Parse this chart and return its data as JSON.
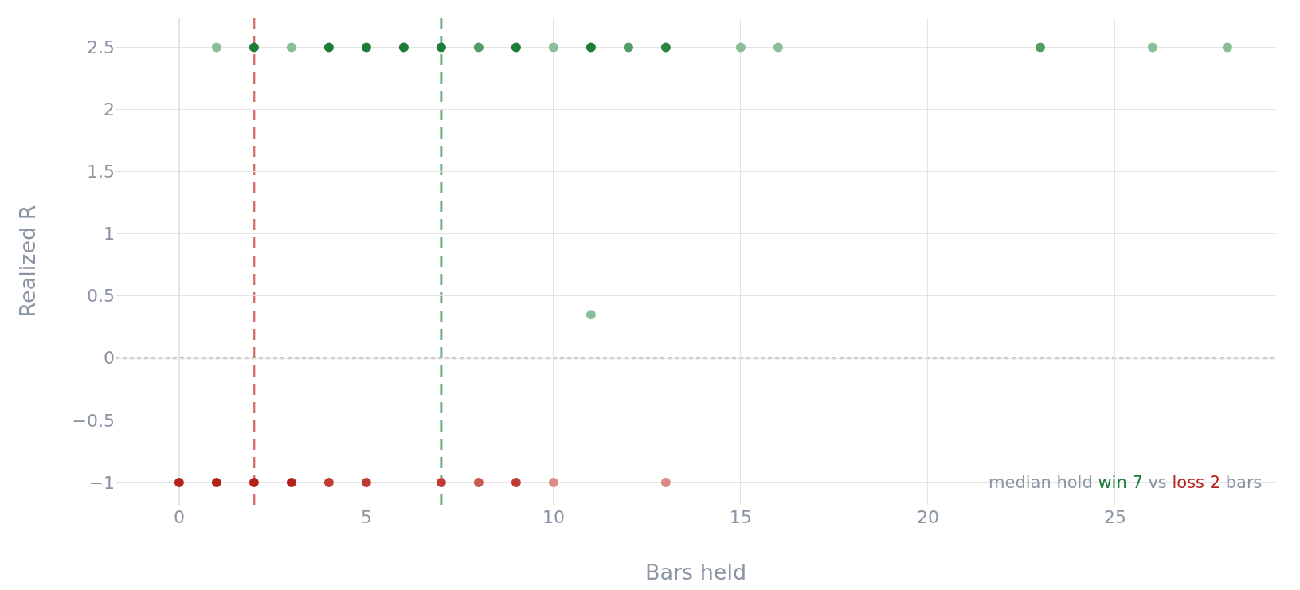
{
  "chart_data": {
    "type": "scatter",
    "xlabel": "Bars held",
    "ylabel": "Realized R",
    "series": [
      {
        "color": "#1c7d38",
        "x": [
          1,
          2,
          3,
          4,
          5,
          6,
          7,
          8,
          9,
          10,
          11,
          11,
          12,
          13,
          15,
          16,
          23,
          26,
          28
        ],
        "values": [
          2.5,
          2.5,
          2.5,
          2.5,
          2.5,
          2.5,
          2.5,
          2.5,
          2.5,
          2.5,
          2.5,
          0.35,
          2.5,
          2.5,
          2.5,
          2.5,
          2.5,
          2.5,
          2.5
        ],
        "colors": [
          "#88bf99",
          "#1c7d38",
          "#88bf99",
          "#1c7d38",
          "#1c7d38",
          "#1c7d38",
          "#1c7d38",
          "#4f9c66",
          "#1c7d38",
          "#88bf99",
          "#1c7d38",
          "#88bf99",
          "#4f9c66",
          "#2a8445",
          "#88bf99",
          "#88bf99",
          "#4f9c66",
          "#88bf99",
          "#88bf99"
        ]
      },
      {
        "color": "#b3231c",
        "x": [
          0,
          1,
          2,
          3,
          4,
          5,
          7,
          8,
          9,
          10,
          13
        ],
        "values": [
          -1,
          -1,
          -1,
          -1,
          -1,
          -1,
          -1,
          -1,
          -1,
          -1,
          -1
        ],
        "colors": [
          "#b3231c",
          "#b3231c",
          "#b3231c",
          "#b3231c",
          "#bf3c34",
          "#bf3c34",
          "#bf3c34",
          "#c85b53",
          "#bf3c34",
          "#dc8b85",
          "#dc8b85"
        ]
      }
    ],
    "xlim": [
      -1.7,
      29.3
    ],
    "xticks": [
      0,
      5,
      10,
      15,
      20,
      25
    ],
    "ylim": [
      -1.18,
      2.74
    ],
    "yticks": [
      -1,
      -0.5,
      0,
      0.5,
      1,
      1.5,
      2,
      2.5
    ],
    "ref_lines": [
      {
        "axis": "x",
        "value": 2,
        "color": "#d4736d",
        "line_style": "dashed"
      },
      {
        "axis": "x",
        "value": 7,
        "color": "#6caf7c",
        "line_style": "dashed"
      },
      {
        "axis": "y",
        "value": 0,
        "color": "#aaaaaa",
        "line_style": "dotted"
      }
    ],
    "annotations": [
      "median hold",
      "win 7",
      "vs",
      "loss 2",
      "bars"
    ],
    "grid": true,
    "marker": "circle"
  }
}
